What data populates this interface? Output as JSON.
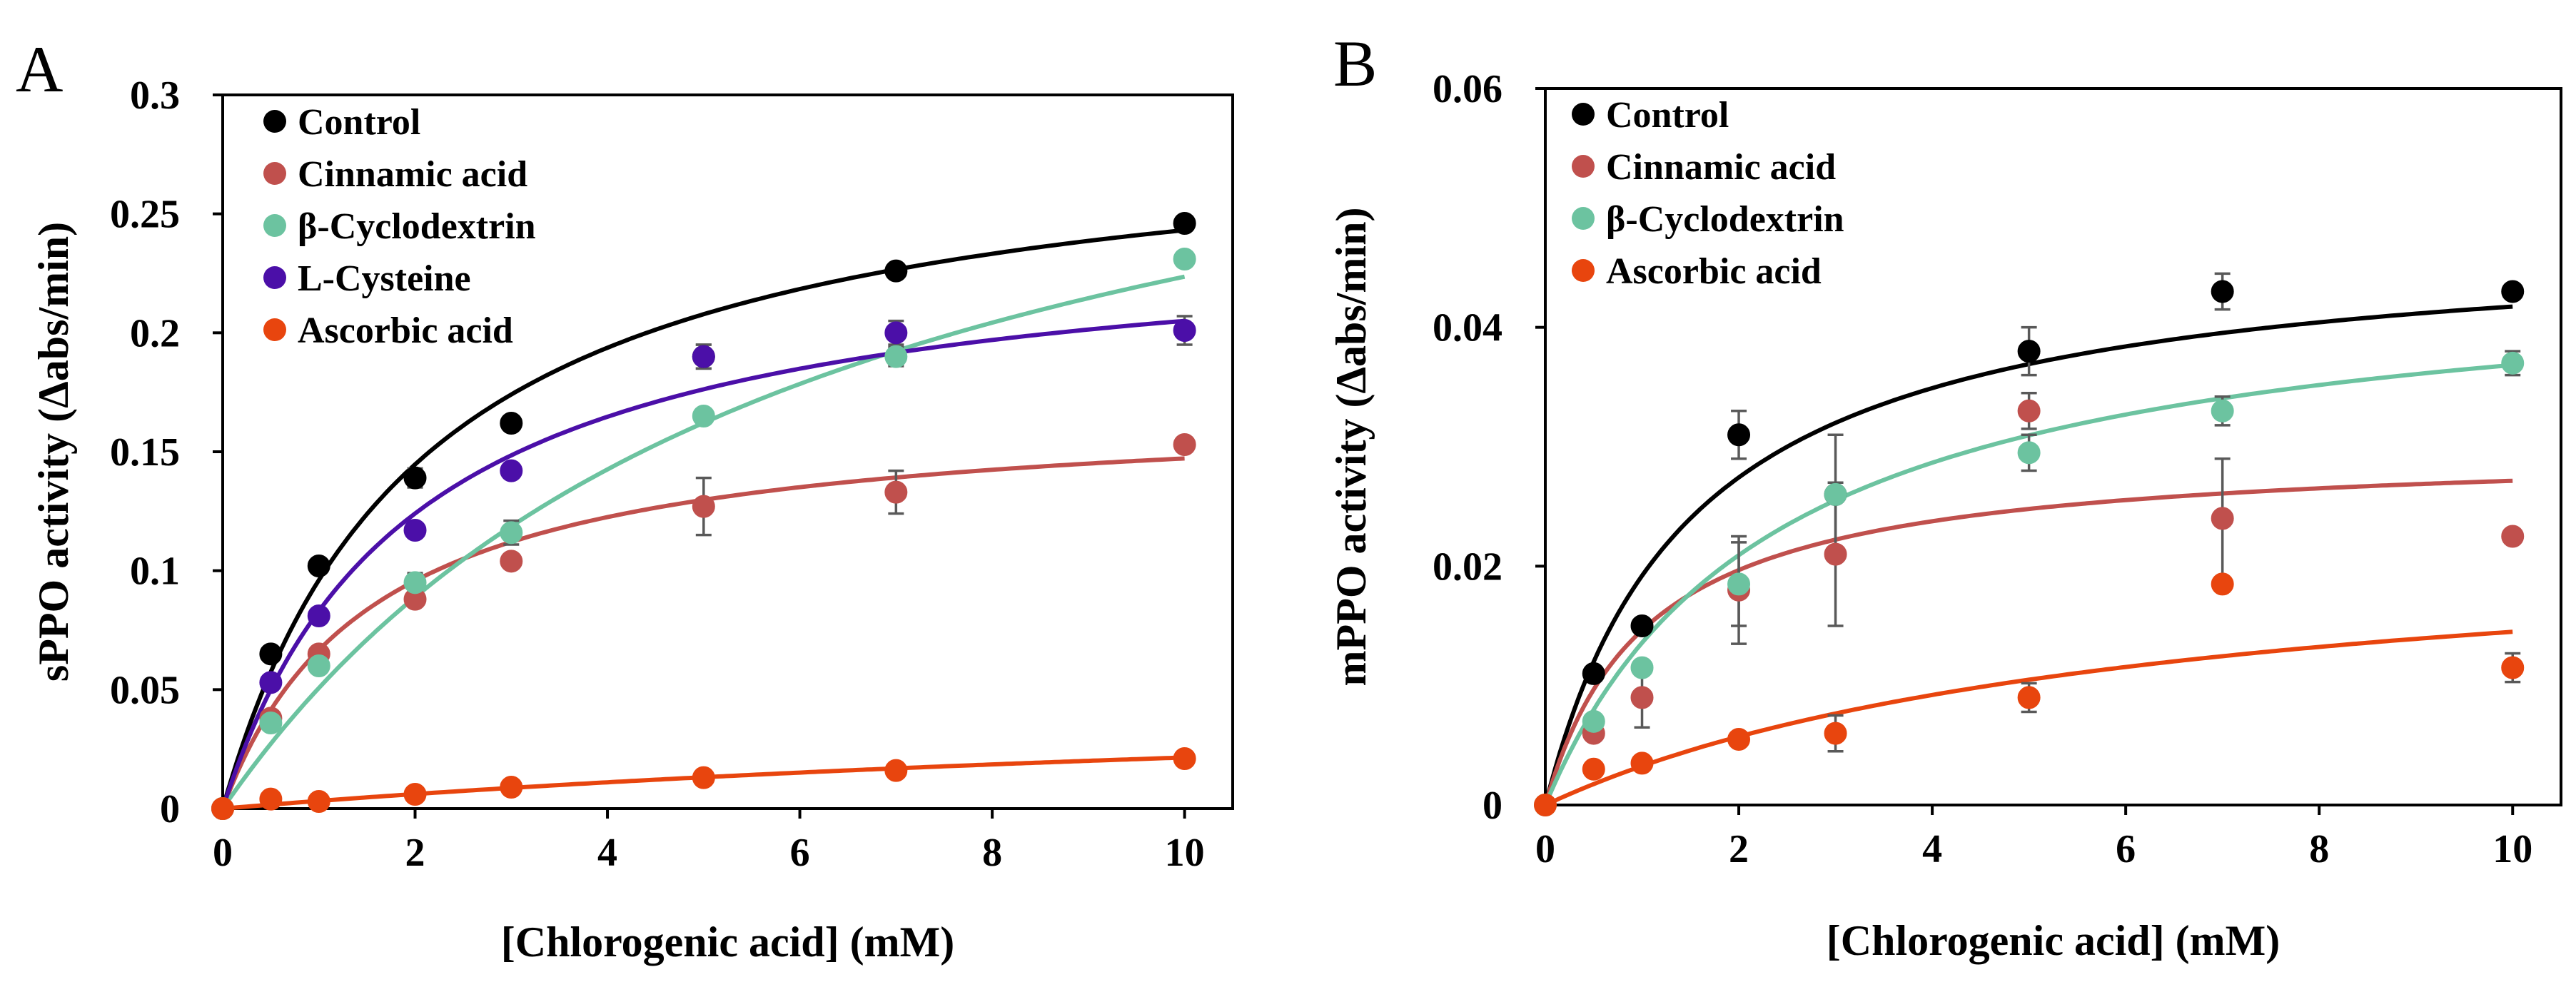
{
  "figure": {
    "panel_letters": [
      "A",
      "B"
    ]
  },
  "chart_data": [
    {
      "panel": "A",
      "type": "scatter",
      "title": "",
      "xlabel": "[Chlorogenic acid] (mM)",
      "ylabel": "sPPO activity (Δabs/min)",
      "xlim": [
        0,
        10.5
      ],
      "ylim": [
        0,
        0.3
      ],
      "xticks": [
        0,
        2,
        4,
        6,
        8,
        10
      ],
      "xtick_labels": [
        "0",
        "2",
        "4",
        "6",
        "8",
        "10"
      ],
      "yticks": [
        0,
        0.05,
        0.1,
        0.15,
        0.2,
        0.25,
        0.3
      ],
      "ytick_labels": [
        "0",
        "0.05",
        "0.1",
        "0.15",
        "0.2",
        "0.25",
        "0.3"
      ],
      "grid": false,
      "legend_position": "top-left",
      "series": [
        {
          "name": "Control",
          "color": "#000000",
          "x": [
            0,
            0.5,
            1,
            2,
            3,
            5,
            7,
            10
          ],
          "y": [
            0,
            0.065,
            0.102,
            0.139,
            0.162,
            0.19,
            0.226,
            0.246
          ],
          "error": [
            0,
            0,
            0,
            0.004,
            0,
            0.005,
            0,
            0
          ],
          "fit": {
            "vmax": 0.293,
            "km": 2.05
          }
        },
        {
          "name": "Cinnamic acid",
          "color": "#C0504D",
          "x": [
            0,
            0.5,
            1,
            2,
            3,
            5,
            7,
            10
          ],
          "y": [
            0,
            0.038,
            0.065,
            0.088,
            0.104,
            0.127,
            0.133,
            0.153
          ],
          "error": [
            0,
            0,
            0,
            0.003,
            0,
            0.012,
            0.009,
            0
          ],
          "fit": {
            "vmax": 0.17,
            "km": 1.55
          }
        },
        {
          "name": "β-Cyclodextrin",
          "color": "#6CC3A0",
          "x": [
            0,
            0.5,
            1,
            2,
            3,
            5,
            7,
            10
          ],
          "y": [
            0,
            0.036,
            0.06,
            0.095,
            0.116,
            0.165,
            0.19,
            0.231
          ],
          "error": [
            0,
            0,
            0,
            0.004,
            0.005,
            0,
            0.004,
            0
          ],
          "fit": {
            "vmax": 0.36,
            "km": 6.1
          }
        },
        {
          "name": "L-Cysteine",
          "color": "#4B0FA8",
          "x": [
            0.5,
            1,
            2,
            3,
            5,
            7,
            10
          ],
          "y": [
            0.053,
            0.081,
            0.117,
            0.142,
            0.19,
            0.2,
            0.201
          ],
          "error": [
            0,
            0,
            0,
            0,
            0.005,
            0.005,
            0.006
          ],
          "fit": {
            "vmax": 0.245,
            "km": 1.95
          }
        },
        {
          "name": "Ascorbic acid",
          "color": "#E8450E",
          "x": [
            0,
            0.5,
            1,
            2,
            3,
            5,
            7,
            10
          ],
          "y": [
            0,
            0.004,
            0.003,
            0.006,
            0.009,
            0.013,
            0.016,
            0.021
          ],
          "error": [
            0,
            0,
            0,
            0,
            0,
            0,
            0,
            0
          ],
          "fit": {
            "vmax": 0.058,
            "km": 17
          }
        }
      ]
    },
    {
      "panel": "B",
      "type": "scatter",
      "title": "",
      "xlabel": "[Chlorogenic acid] (mM)",
      "ylabel": "mPPO activity (Δabs/min)",
      "xlim": [
        0,
        10.5
      ],
      "ylim": [
        0,
        0.06
      ],
      "xticks": [
        0,
        2,
        4,
        6,
        8,
        10
      ],
      "xtick_labels": [
        "0",
        "2",
        "4",
        "6",
        "8",
        "10"
      ],
      "yticks": [
        0,
        0.02,
        0.04,
        0.06
      ],
      "ytick_labels": [
        "0",
        "0.02",
        "0.04",
        "0.06"
      ],
      "grid": false,
      "legend_position": "top-left",
      "series": [
        {
          "name": "Control",
          "color": "#000000",
          "x": [
            0.5,
            1,
            2,
            3,
            5,
            7,
            10
          ],
          "y": [
            0.011,
            0.015,
            0.031,
            0.026,
            0.038,
            0.043,
            0.043
          ],
          "error": [
            0,
            0,
            0.002,
            0,
            0.002,
            0.0015,
            0
          ],
          "fit": {
            "vmax": 0.048,
            "km": 1.5
          }
        },
        {
          "name": "Cinnamic acid",
          "color": "#C0504D",
          "x": [
            0.5,
            1,
            2,
            3,
            5,
            7,
            10
          ],
          "y": [
            0.006,
            0.009,
            0.018,
            0.021,
            0.033,
            0.024,
            0.0225
          ],
          "error": [
            0,
            0.0025,
            0.0045,
            0.006,
            0.0015,
            0.005,
            0
          ],
          "fit": {
            "vmax": 0.03,
            "km": 1.05
          }
        },
        {
          "name": "β-Cyclodextrin",
          "color": "#6CC3A0",
          "x": [
            0,
            0.5,
            1,
            2,
            3,
            5,
            7,
            10
          ],
          "y": [
            0,
            0.007,
            0.0115,
            0.0185,
            0.026,
            0.0295,
            0.033,
            0.037
          ],
          "error": [
            0,
            0,
            0,
            0.0035,
            0.005,
            0.0015,
            0.0012,
            0.001
          ],
          "fit": {
            "vmax": 0.0455,
            "km": 2.35
          }
        },
        {
          "name": "Ascorbic acid",
          "color": "#E8450E",
          "x": [
            0,
            0.5,
            1,
            2,
            3,
            5,
            7,
            10
          ],
          "y": [
            0,
            0.003,
            0.0035,
            0.0055,
            0.006,
            0.009,
            0.0185,
            0.0115
          ],
          "error": [
            0,
            0,
            0,
            0,
            0.0015,
            0.0012,
            0,
            0.0012
          ],
          "fit": {
            "vmax": 0.0235,
            "km": 6.2
          }
        }
      ]
    }
  ]
}
